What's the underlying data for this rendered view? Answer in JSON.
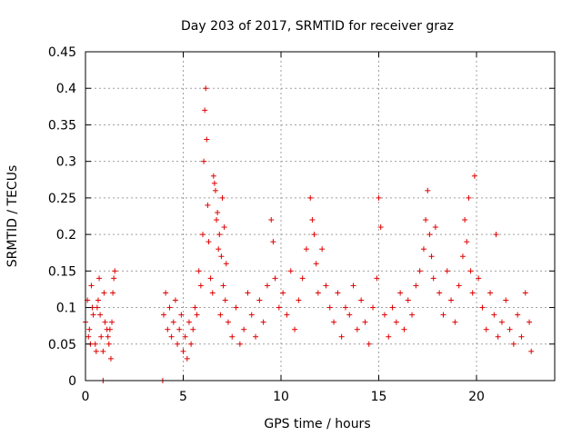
{
  "chart_data": {
    "type": "scatter",
    "title": "Day 203 of 2017, SRMTID for receiver graz",
    "xlabel": "GPS time / hours",
    "ylabel": "SRMTID / TECUs",
    "xlim": [
      0,
      24
    ],
    "ylim": [
      0,
      0.45
    ],
    "xticks": [
      0,
      5,
      10,
      15,
      20
    ],
    "xtick_labels": [
      "0",
      "5",
      "10",
      "15",
      "20"
    ],
    "yticks": [
      0,
      0.05,
      0.1,
      0.15,
      0.2,
      0.25,
      0.3,
      0.35,
      0.4,
      0.45
    ],
    "ytick_labels": [
      "0",
      "0.05",
      "0.1",
      "0.15",
      "0.2",
      "0.25",
      "0.3",
      "0.35",
      "0.4",
      "0.45"
    ],
    "grid": true,
    "marker": "plus",
    "series_color": "#e00000",
    "series": [
      {
        "name": "SRMTID",
        "x": [
          0.0,
          0.1,
          0.2,
          0.3,
          0.4,
          0.5,
          0.6,
          0.7,
          0.8,
          0.9,
          1.0,
          1.1,
          1.2,
          1.3,
          1.4,
          1.5,
          0.15,
          0.35,
          0.55,
          0.75,
          0.95,
          1.15,
          1.35,
          1.45,
          0.25,
          0.65,
          1.25,
          0.9,
          3.95,
          4.0,
          4.1,
          4.2,
          4.3,
          4.4,
          4.5,
          4.6,
          4.7,
          4.8,
          4.9,
          5.0,
          5.1,
          5.2,
          5.3,
          5.4,
          5.5,
          5.6,
          5.7,
          5.8,
          5.9,
          6.0,
          6.05,
          6.1,
          6.15,
          6.2,
          6.25,
          6.3,
          6.4,
          6.5,
          6.6,
          6.7,
          6.8,
          6.9,
          7.0,
          7.1,
          7.2,
          6.55,
          6.65,
          6.75,
          6.85,
          6.95,
          7.05,
          7.15,
          7.3,
          7.5,
          7.7,
          7.9,
          8.1,
          8.3,
          8.5,
          8.7,
          8.9,
          9.1,
          9.3,
          9.5,
          9.6,
          9.7,
          9.9,
          10.1,
          10.3,
          10.5,
          10.7,
          10.9,
          11.1,
          11.3,
          11.5,
          11.6,
          11.7,
          11.8,
          11.9,
          12.1,
          12.3,
          12.5,
          12.7,
          12.9,
          13.1,
          13.3,
          13.5,
          13.7,
          13.9,
          14.1,
          14.3,
          14.5,
          14.7,
          14.9,
          15.0,
          15.1,
          15.3,
          15.5,
          15.7,
          15.9,
          16.1,
          16.3,
          16.5,
          16.7,
          16.9,
          17.1,
          17.3,
          17.4,
          17.5,
          17.6,
          17.7,
          17.8,
          17.9,
          18.1,
          18.3,
          18.5,
          18.7,
          18.9,
          19.1,
          19.3,
          19.4,
          19.5,
          19.6,
          19.7,
          19.8,
          19.9,
          20.1,
          20.3,
          20.5,
          20.7,
          20.9,
          21.1,
          21.3,
          21.5,
          21.7,
          21.9,
          22.1,
          22.3,
          22.5,
          22.7,
          22.8,
          21.0
        ],
        "y": [
          0.08,
          0.11,
          0.07,
          0.13,
          0.09,
          0.05,
          0.1,
          0.14,
          0.06,
          0.04,
          0.08,
          0.07,
          0.05,
          0.03,
          0.12,
          0.15,
          0.06,
          0.1,
          0.04,
          0.09,
          0.12,
          0.06,
          0.08,
          0.14,
          0.05,
          0.11,
          0.07,
          0.0,
          0.0,
          0.09,
          0.12,
          0.07,
          0.1,
          0.06,
          0.08,
          0.11,
          0.05,
          0.07,
          0.09,
          0.04,
          0.06,
          0.03,
          0.08,
          0.05,
          0.07,
          0.1,
          0.09,
          0.15,
          0.13,
          0.2,
          0.3,
          0.37,
          0.4,
          0.33,
          0.24,
          0.19,
          0.14,
          0.12,
          0.27,
          0.22,
          0.18,
          0.09,
          0.25,
          0.21,
          0.16,
          0.28,
          0.26,
          0.23,
          0.2,
          0.17,
          0.13,
          0.11,
          0.08,
          0.06,
          0.1,
          0.05,
          0.07,
          0.12,
          0.09,
          0.06,
          0.11,
          0.08,
          0.13,
          0.22,
          0.19,
          0.14,
          0.1,
          0.12,
          0.09,
          0.15,
          0.07,
          0.11,
          0.14,
          0.18,
          0.25,
          0.22,
          0.2,
          0.16,
          0.12,
          0.18,
          0.13,
          0.1,
          0.08,
          0.12,
          0.06,
          0.1,
          0.09,
          0.13,
          0.07,
          0.11,
          0.08,
          0.05,
          0.1,
          0.14,
          0.25,
          0.21,
          0.09,
          0.06,
          0.1,
          0.08,
          0.12,
          0.07,
          0.11,
          0.09,
          0.13,
          0.15,
          0.18,
          0.22,
          0.26,
          0.2,
          0.17,
          0.14,
          0.21,
          0.12,
          0.09,
          0.15,
          0.11,
          0.08,
          0.13,
          0.17,
          0.22,
          0.19,
          0.25,
          0.15,
          0.12,
          0.28,
          0.14,
          0.1,
          0.07,
          0.12,
          0.09,
          0.06,
          0.08,
          0.11,
          0.07,
          0.05,
          0.09,
          0.06,
          0.12,
          0.08,
          0.04,
          0.2
        ]
      }
    ]
  }
}
